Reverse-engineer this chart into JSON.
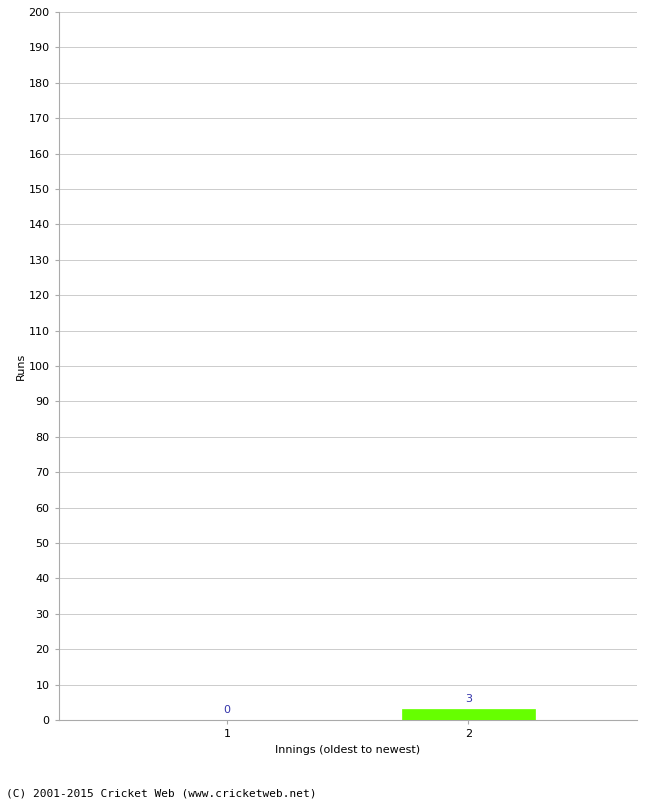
{
  "xlabel": "Innings (oldest to newest)",
  "ylabel": "Runs",
  "categories": [
    1,
    2
  ],
  "values": [
    0,
    3
  ],
  "bar_color": "#66ff00",
  "value_labels": [
    "0",
    "3"
  ],
  "value_label_color": "#3333aa",
  "ylim": [
    0,
    200
  ],
  "yticks": [
    0,
    10,
    20,
    30,
    40,
    50,
    60,
    70,
    80,
    90,
    100,
    110,
    120,
    130,
    140,
    150,
    160,
    170,
    180,
    190,
    200
  ],
  "xticks": [
    1,
    2
  ],
  "background_color": "#ffffff",
  "grid_color": "#cccccc",
  "footer": "(C) 2001-2015 Cricket Web (www.cricketweb.net)",
  "bar_width": 0.55,
  "spine_color": "#aaaaaa",
  "tick_color": "#000000",
  "label_fontsize": 8,
  "tick_fontsize": 8,
  "footer_fontsize": 8
}
